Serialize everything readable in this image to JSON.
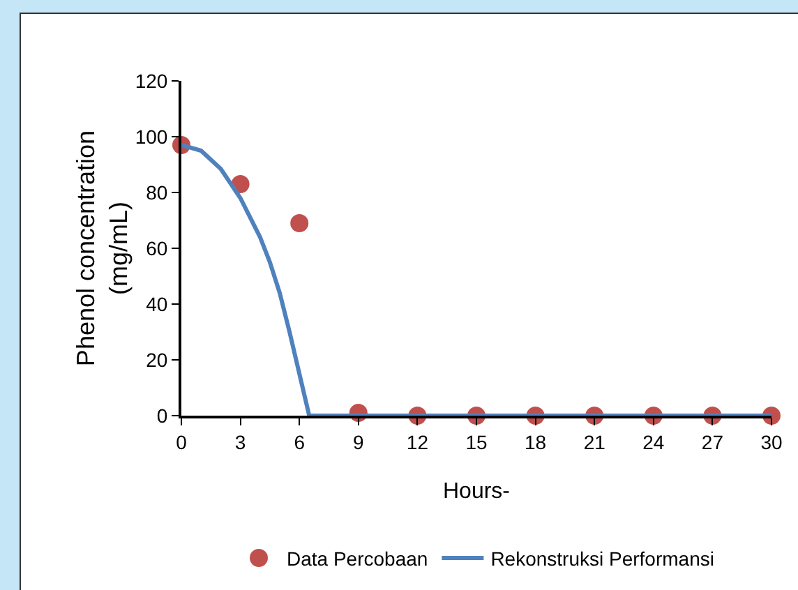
{
  "chart_data": {
    "type": "scatter",
    "xlabel": "Hours-",
    "ylabel": "Phenol concentration\n(mg/mL)",
    "xlim": [
      0,
      30
    ],
    "xticks": [
      0,
      3,
      6,
      9,
      12,
      15,
      18,
      21,
      24,
      27,
      30
    ],
    "ylim": [
      0,
      120
    ],
    "yticks": [
      0,
      20,
      40,
      60,
      80,
      100,
      120
    ],
    "grid": false,
    "legend": "bottom",
    "series": [
      {
        "name": "Data Percobaan",
        "marker": "circle",
        "color": "#c0504d",
        "x": [
          0,
          3,
          6,
          9,
          12,
          15,
          18,
          21,
          24,
          27,
          30
        ],
        "values": [
          97,
          83,
          69,
          1,
          0,
          0,
          0,
          0,
          0,
          0,
          0
        ]
      },
      {
        "name": "Rekonstruksi Performansi",
        "type": "line",
        "marker": "none",
        "line_style": "solid",
        "color": "#4f81bd",
        "x": [
          0,
          1,
          2,
          3,
          4,
          4.5,
          5,
          5.5,
          6,
          6.5,
          9,
          12,
          15,
          18,
          21,
          24,
          27,
          30
        ],
        "values": [
          97,
          95,
          88.5,
          78,
          64,
          55,
          44,
          30,
          15,
          0,
          0,
          0,
          0,
          0,
          0,
          0,
          0,
          0
        ]
      }
    ]
  }
}
